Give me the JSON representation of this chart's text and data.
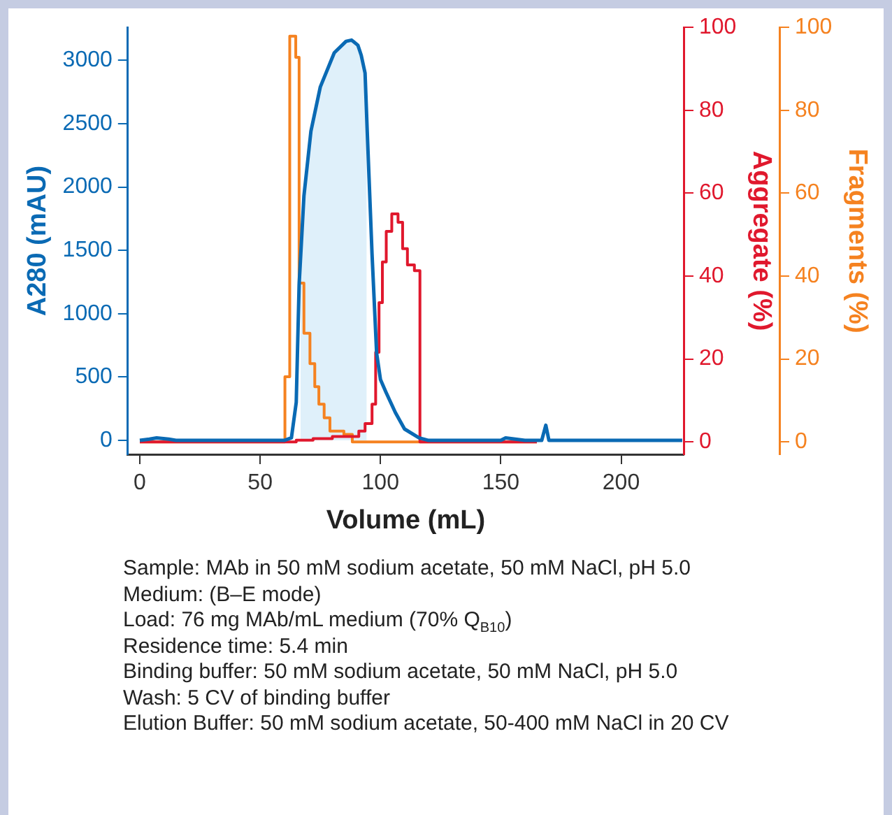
{
  "chart_data": {
    "type": "line",
    "xlabel": "Volume (mL)",
    "ylabel": "A280 (mAU)",
    "y2label": "Aggregate (%)",
    "y3label": "Fragments (%)",
    "xlim": [
      -5,
      226
    ],
    "xticks": [
      0,
      50,
      100,
      150,
      200
    ],
    "ylim": [
      -110,
      3260
    ],
    "yticks": [
      0,
      500,
      1000,
      1500,
      2000,
      2500,
      3000
    ],
    "y2lim": [
      -3,
      100
    ],
    "y2ticks": [
      0,
      20,
      40,
      60,
      80,
      100
    ],
    "y3lim": [
      -3,
      100
    ],
    "y3ticks": [
      0,
      20,
      40,
      60,
      80,
      100
    ],
    "grid": false,
    "legend": false,
    "marker": "none",
    "line_style": "solid",
    "series": [
      {
        "type": "area",
        "color": "#dff0fa",
        "x": [
          66.8,
          68.2,
          71.1,
          75,
          80.8,
          85.7,
          88,
          90.6,
          92,
          93.6,
          94.3
        ],
        "values": [
          1400,
          1930,
          2440,
          2790,
          3060,
          3150,
          3160,
          3120,
          3040,
          2900,
          2600
        ]
      },
      {
        "type": "line",
        "color": "#0a6ab4",
        "x": [
          0,
          4,
          7,
          12,
          15,
          60,
          63,
          65,
          66.2,
          68.2,
          71.1,
          75,
          80.8,
          85.7,
          88,
          90.6,
          92,
          93.6,
          94.5,
          96.5,
          98.4,
          100,
          102.3,
          106.2,
          110,
          116,
          120,
          150,
          152,
          160,
          165,
          167,
          168.7,
          170,
          172,
          225.4
        ],
        "values": [
          0,
          10,
          20,
          10,
          0,
          0,
          20,
          300,
          1230,
          1930,
          2440,
          2790,
          3060,
          3150,
          3160,
          3120,
          3040,
          2900,
          2440,
          1470,
          690,
          480,
          380,
          220,
          90,
          20,
          0,
          0,
          20,
          0,
          0,
          0,
          120,
          0,
          0,
          0
        ]
      },
      {
        "type": "step",
        "axis": "y2",
        "color": "#e0182d",
        "x": [
          0,
          65,
          72,
          80,
          91,
          93.6,
          96.5,
          98,
          99.4,
          100.8,
          102.4,
          104.7,
          107.3,
          109.2,
          111.2,
          114.1,
          116.4,
          165
        ],
        "values": [
          0,
          0.4,
          0.8,
          1.3,
          2.6,
          4.4,
          9.1,
          21.6,
          33.6,
          43.4,
          50.8,
          55,
          53,
          46.6,
          42.7,
          41.3,
          0,
          0
        ]
      },
      {
        "type": "step",
        "axis": "y3",
        "color": "#f58220",
        "x": [
          0,
          60.3,
          62.3,
          64.8,
          66.2,
          68.2,
          70.7,
          72.7,
          74.4,
          76.6,
          79,
          84.8,
          88.3,
          165
        ],
        "values": [
          0,
          15.7,
          97.9,
          92.8,
          38.3,
          26.2,
          18.9,
          13.3,
          9.1,
          5.8,
          2.6,
          1.8,
          0,
          0
        ]
      }
    ],
    "annotations": [
      "Sample: MAb in 50 mM sodium acetate, 50 mM NaCl, pH 5.0",
      "Medium: (B–E mode)",
      "Load: 76 mg MAb/mL medium (70% Q$_{B10}$)",
      "Residence time: 5.4 min",
      "Binding buffer: 50 mM sodium acetate, 50 mM NaCl, pH 5.0",
      "Wash: 5 CV of binding buffer",
      "Elution Buffer: 50 mM sodium acetate, 50-400 mM NaCl in 20 CV"
    ]
  }
}
